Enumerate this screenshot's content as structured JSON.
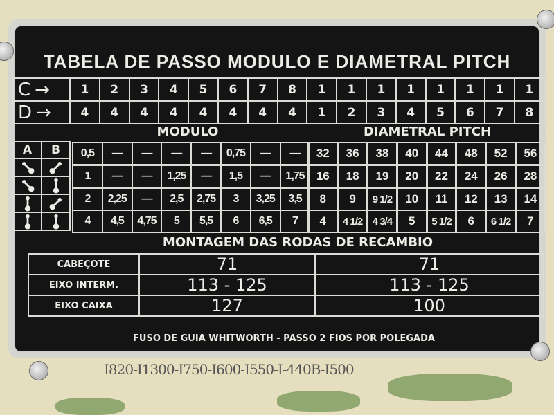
{
  "title": "TABELA DE PASSO MODULO E DIAMETRAL PITCH",
  "row_labels": {
    "c": "C",
    "d": "D",
    "a": "A",
    "b": "B"
  },
  "c_values": [
    "1",
    "2",
    "3",
    "4",
    "5",
    "6",
    "7",
    "8",
    "1",
    "1",
    "1",
    "1",
    "1",
    "1",
    "1",
    "1"
  ],
  "d_values": [
    "4",
    "4",
    "4",
    "4",
    "4",
    "4",
    "4",
    "4",
    "1",
    "2",
    "3",
    "4",
    "5",
    "6",
    "7",
    "8"
  ],
  "modulo_header": "MODULO",
  "dp_header": "DIAMETRAL PITCH",
  "lever_positions": [
    {
      "a": "diagonal-down",
      "b": "diagonal-up"
    },
    {
      "a": "diagonal-down",
      "b": "vertical"
    },
    {
      "a": "vertical",
      "b": "diagonal-up"
    },
    {
      "a": "vertical",
      "b": "vertical"
    }
  ],
  "modulo_rows": [
    [
      "0,5",
      "—",
      "—",
      "—",
      "—",
      "0,75",
      "—",
      "—"
    ],
    [
      "1",
      "—",
      "—",
      "1,25",
      "—",
      "1,5",
      "—",
      "1,75"
    ],
    [
      "2",
      "2,25",
      "—",
      "2,5",
      "2,75",
      "3",
      "3,25",
      "3,5"
    ],
    [
      "4",
      "4,5",
      "4,75",
      "5",
      "5,5",
      "6",
      "6,5",
      "7"
    ]
  ],
  "dp_rows": [
    [
      "32",
      "36",
      "38",
      "40",
      "44",
      "48",
      "52",
      "56"
    ],
    [
      "16",
      "18",
      "19",
      "20",
      "22",
      "24",
      "26",
      "28"
    ],
    [
      "8",
      "9",
      "9 1/2",
      "10",
      "11",
      "12",
      "13",
      "14"
    ],
    [
      "4",
      "4 1/2",
      "4 3/4",
      "5",
      "5 1/2",
      "6",
      "6 1/2",
      "7"
    ]
  ],
  "montagem": {
    "header": "MONTAGEM DAS RODAS DE RECAMBIO",
    "rows": [
      {
        "label": "CABEÇOTE",
        "modulo": "71",
        "dp": "71"
      },
      {
        "label": "EIXO INTERM.",
        "modulo": "113 - 125",
        "dp": "113 - 125"
      },
      {
        "label": "EIXO CAIXA",
        "modulo": "127",
        "dp": "100"
      }
    ]
  },
  "footer": "FUSO DE GUIA WHITWORTH - PASSO 2 FIOS POR POLEGADA",
  "bottom_code": "I820-I1300-I750-I600-I550-I-440B-I500",
  "colors": {
    "plate": "#141414",
    "text": "#ecece6",
    "background": "#e6dfbf",
    "paint": "#7d9a5e"
  }
}
